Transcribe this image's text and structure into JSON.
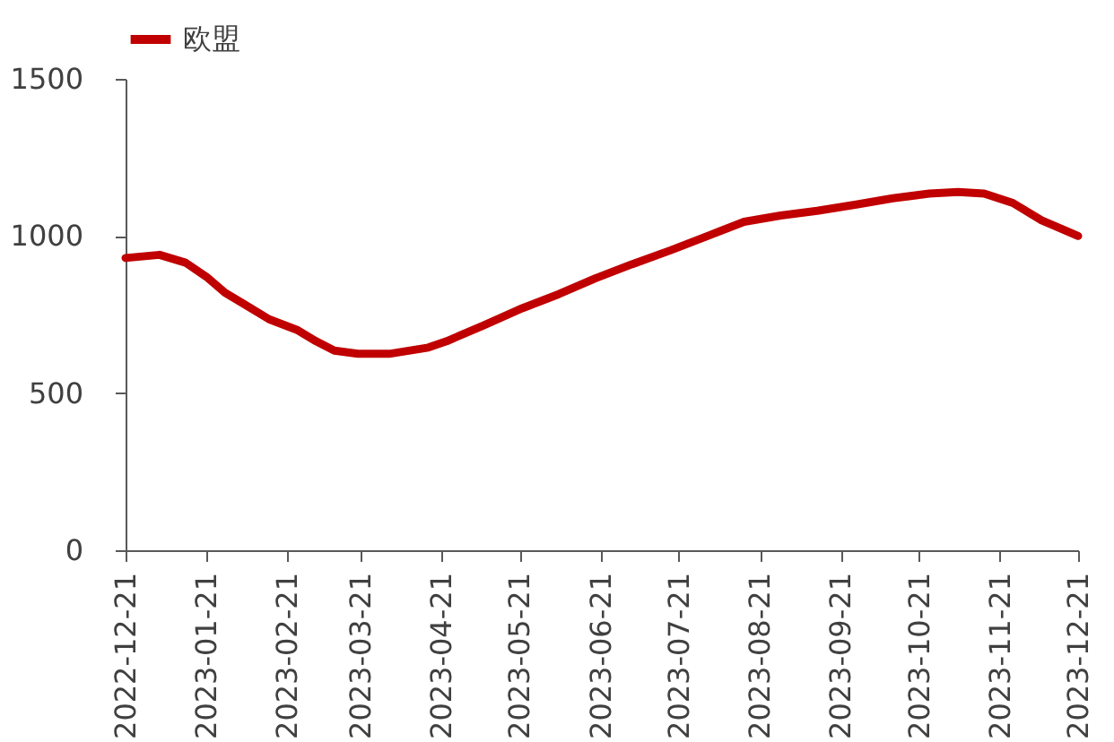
{
  "chart_data": {
    "type": "line",
    "legend": "top",
    "grid": false,
    "line_style": "solid",
    "marker": "none",
    "x": [
      "2022-12-21",
      "2023-01-03",
      "2023-01-13",
      "2023-01-21",
      "2023-01-28",
      "2023-02-04",
      "2023-02-14",
      "2023-02-25",
      "2023-03-04",
      "2023-03-11",
      "2023-03-20",
      "2023-04-01",
      "2023-04-16",
      "2023-04-23",
      "2023-05-07",
      "2023-05-22",
      "2023-06-05",
      "2023-06-19",
      "2023-07-03",
      "2023-07-18",
      "2023-08-01",
      "2023-08-15",
      "2023-08-29",
      "2023-09-12",
      "2023-09-27",
      "2023-10-11",
      "2023-10-25",
      "2023-11-05",
      "2023-11-15",
      "2023-11-26",
      "2023-12-07",
      "2023-12-21"
    ],
    "series": [
      {
        "name": "欧盟",
        "color": "#c00000",
        "values": [
          930,
          940,
          915,
          870,
          820,
          785,
          735,
          700,
          665,
          635,
          625,
          625,
          645,
          665,
          715,
          770,
          815,
          865,
          910,
          955,
          1000,
          1045,
          1065,
          1080,
          1100,
          1120,
          1135,
          1140,
          1135,
          1105,
          1050,
          1000
        ]
      }
    ],
    "xlim": [
      "2022-12-21",
      "2023-12-21"
    ],
    "xticks": [
      "2022-12-21",
      "2023-01-21",
      "2023-02-21",
      "2023-03-21",
      "2023-04-21",
      "2023-05-21",
      "2023-06-21",
      "2023-07-21",
      "2023-08-21",
      "2023-09-21",
      "2023-10-21",
      "2023-11-21",
      "2023-12-21"
    ],
    "ylim": [
      0,
      1500
    ],
    "yticks": [
      0,
      500,
      1000,
      1500
    ]
  }
}
